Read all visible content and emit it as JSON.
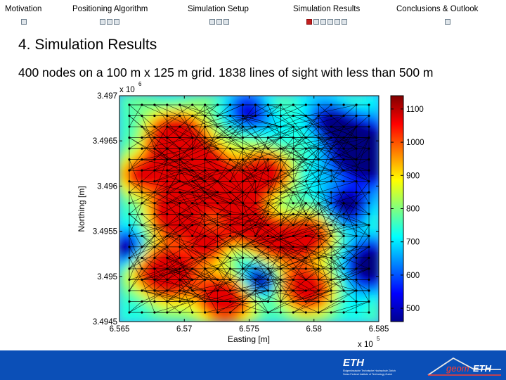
{
  "nav": {
    "items": [
      {
        "label": "Motivation",
        "dots": 1,
        "active": -1
      },
      {
        "label": "Positioning Algorithm",
        "dots": 3,
        "active": -1
      },
      {
        "label": "Simulation Setup",
        "dots": 3,
        "active": -1
      },
      {
        "label": "Simulation Results",
        "dots": 6,
        "active": 0
      },
      {
        "label": "Conclusions & Outlook",
        "dots": 1,
        "active": -1
      }
    ]
  },
  "slide": {
    "title": "4. Simulation Results",
    "subtitle": "400  nodes on  a 100 m x 125 m grid. 1838 lines of sight with less than 500 m"
  },
  "chart_data": {
    "type": "heatmap",
    "title": "",
    "xlabel": "Easting [m]",
    "ylabel": "Northing [m]",
    "x_exponent": "x 10^5",
    "y_exponent": "x 10^6",
    "xlim": [
      6.565,
      6.585
    ],
    "ylim": [
      3.4945,
      3.497
    ],
    "x_ticks": [
      "6.565",
      "6.57",
      "6.575",
      "6.58",
      "6.585"
    ],
    "y_ticks": [
      "3.4945",
      "3.495",
      "3.4955",
      "3.496",
      "3.4965",
      "3.497"
    ],
    "colorbar": {
      "ticks": [
        "500",
        "600",
        "700",
        "800",
        "900",
        "1000",
        "1100"
      ],
      "range": [
        460,
        1140
      ],
      "colormap": "jet"
    },
    "grid_nodes": {
      "cols": 20,
      "rows": 20
    },
    "lines_of_sight": 1838
  },
  "footer": {
    "eth_logo": "ETH",
    "eth_lines": [
      "Eidgenössische Technische Hochschule Zürich",
      "Swiss Federal Institute of Technology Zurich"
    ],
    "geom_logo": "geomETH",
    "color": "#0b4fb7"
  }
}
